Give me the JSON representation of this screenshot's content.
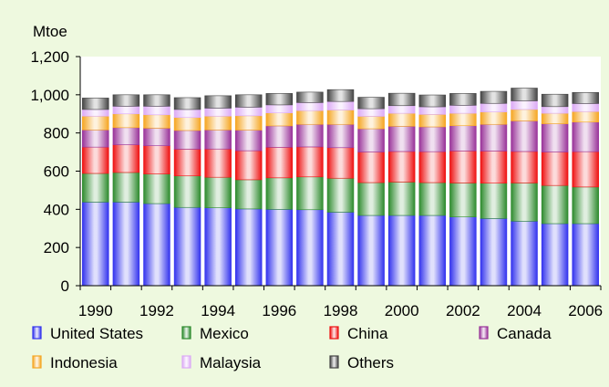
{
  "chart_data": {
    "type": "bar",
    "stacked": true,
    "ylabel": "Mtoe",
    "ylim": [
      0,
      1200
    ],
    "yticks": [
      0,
      200,
      400,
      600,
      800,
      1000,
      1200
    ],
    "ytick_labels": [
      "0",
      "200",
      "400",
      "600",
      "800",
      "1,000",
      "1,200"
    ],
    "grid": false,
    "legend_position": "bottom",
    "categories": [
      1990,
      1991,
      1992,
      1993,
      1994,
      1995,
      1996,
      1997,
      1998,
      1999,
      2000,
      2001,
      2002,
      2003,
      2004,
      2005,
      2006
    ],
    "xtick_labels": [
      "1990",
      "",
      "1992",
      "",
      "1994",
      "",
      "1996",
      "",
      "1998",
      "",
      "2000",
      "",
      "2002",
      "",
      "2004",
      "",
      "2006"
    ],
    "series": [
      {
        "name": "United States",
        "color": "#3333ee",
        "values": [
          438,
          438,
          430,
          410,
          408,
          402,
          400,
          398,
          385,
          368,
          368,
          368,
          360,
          352,
          338,
          325,
          325
        ]
      },
      {
        "name": "Mexico",
        "color": "#2e8b2e",
        "values": [
          150,
          155,
          155,
          165,
          160,
          153,
          165,
          172,
          178,
          172,
          175,
          172,
          178,
          185,
          200,
          200,
          192
        ]
      },
      {
        "name": "China",
        "color": "#ee1111",
        "values": [
          138,
          145,
          148,
          140,
          148,
          152,
          160,
          157,
          160,
          160,
          160,
          162,
          168,
          168,
          165,
          175,
          185
        ]
      },
      {
        "name": "Canada",
        "color": "#993399",
        "values": [
          90,
          90,
          92,
          98,
          100,
          108,
          112,
          118,
          122,
          122,
          132,
          130,
          132,
          140,
          160,
          148,
          155
        ]
      },
      {
        "name": "Indonesia",
        "color": "#f5a623",
        "values": [
          72,
          72,
          70,
          68,
          72,
          75,
          68,
          72,
          75,
          65,
          68,
          65,
          65,
          65,
          60,
          55,
          55
        ]
      },
      {
        "name": "Malaysia",
        "color": "#dcaaf5",
        "values": [
          35,
          40,
          45,
          42,
          42,
          45,
          42,
          42,
          45,
          40,
          40,
          40,
          42,
          45,
          45,
          35,
          42
        ]
      },
      {
        "name": "Others",
        "color": "#444444",
        "values": [
          60,
          60,
          60,
          62,
          65,
          65,
          60,
          55,
          62,
          60,
          65,
          62,
          62,
          63,
          67,
          65,
          58
        ]
      }
    ]
  }
}
